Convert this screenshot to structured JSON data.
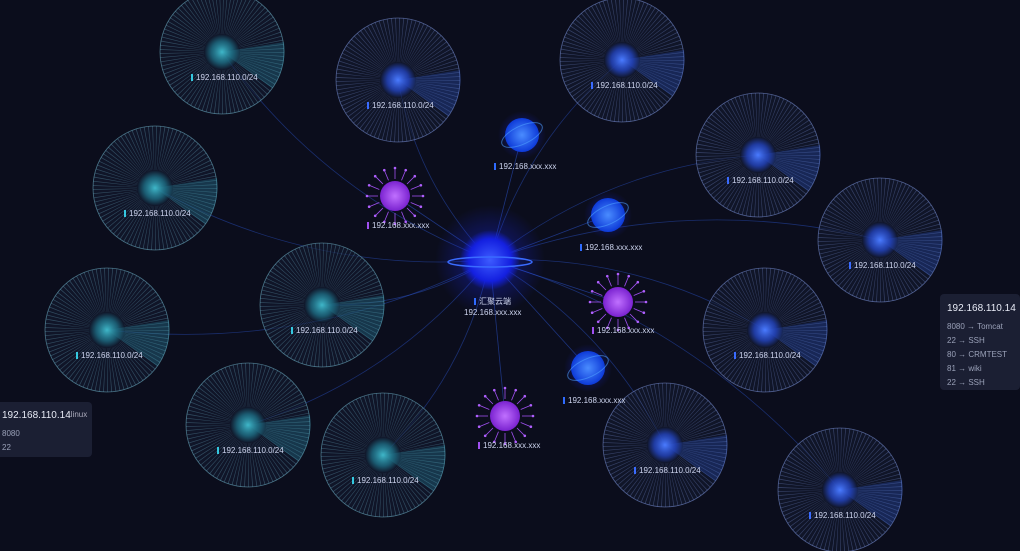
{
  "colors": {
    "background": "#0b0d1c",
    "cluster_teal": "#2aa0b8",
    "cluster_blue": "#2f5fe0",
    "core": "#1a2cff",
    "host_blue": "#1e6bff",
    "host_purple": "#9a3cf0"
  },
  "core": {
    "name": "汇聚云端",
    "ip": "192.168.xxx.xxx",
    "icon": "globe-icon"
  },
  "clusters": [
    {
      "label": "192.168.110.0/24",
      "tone": "teal"
    },
    {
      "label": "192.168.110.0/24",
      "tone": "blue"
    },
    {
      "label": "192.168.110.0/24",
      "tone": "blue"
    },
    {
      "label": "192.168.110.0/24",
      "tone": "blue"
    },
    {
      "label": "192.168.110.0/24",
      "tone": "blue"
    },
    {
      "label": "192.168.110.0/24",
      "tone": "teal"
    },
    {
      "label": "192.168.110.0/24",
      "tone": "teal"
    },
    {
      "label": "192.168.110.0/24",
      "tone": "teal"
    },
    {
      "label": "192.168.110.0/24",
      "tone": "teal"
    },
    {
      "label": "192.168.110.0/24",
      "tone": "teal"
    },
    {
      "label": "192.168.110.0/24",
      "tone": "blue"
    },
    {
      "label": "192.168.110.0/24",
      "tone": "blue"
    },
    {
      "label": "192.168.110.0/24",
      "tone": "blue"
    }
  ],
  "hosts": [
    {
      "label": "192.168.xxx.xxx",
      "type": "blue"
    },
    {
      "label": "192.168.xxx.xxx",
      "type": "blue"
    },
    {
      "label": "192.168.xxx.xxx",
      "type": "blue"
    },
    {
      "label": "192.168.xxx.xxx",
      "type": "purple"
    },
    {
      "label": "192.168.xxx.xxx",
      "type": "purple"
    },
    {
      "label": "192.168.xxx.xxx",
      "type": "purple"
    }
  ],
  "panel_left": {
    "ip": "192.168.110.14",
    "os": "linux",
    "ports": [
      "8080",
      "22"
    ]
  },
  "panel_right": {
    "ip": "192.168.110.14",
    "ports": [
      "8080 → Tomcat",
      "22 → SSH",
      "80 → CRMTEST",
      "81 → wiki",
      "22 → SSH"
    ]
  }
}
